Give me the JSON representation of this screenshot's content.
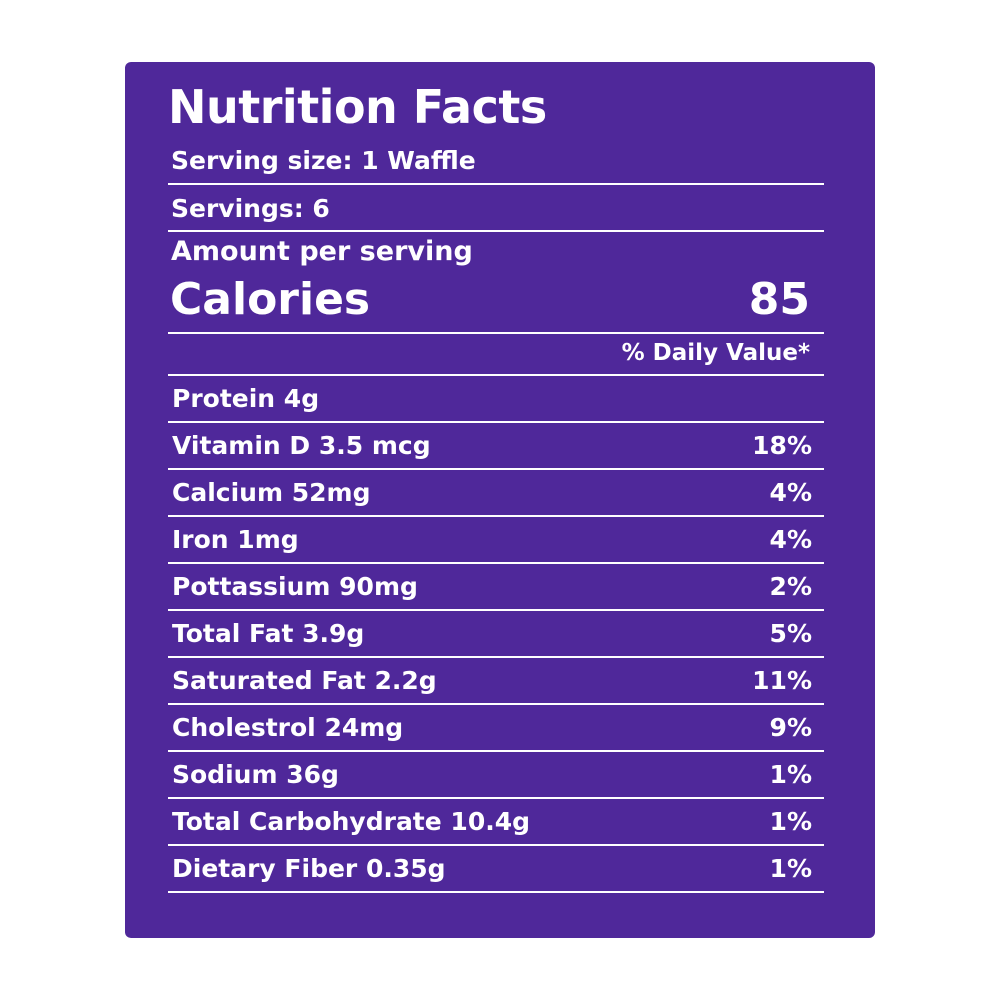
{
  "colors": {
    "panel": "#4f289a",
    "text": "#ffffff",
    "background": "#ffffff"
  },
  "label": {
    "title": "Nutrition Facts",
    "serving_size": "Serving size: 1 Waffle",
    "servings": "Servings: 6",
    "amount_per_serving": "Amount per serving",
    "calories_label": "Calories",
    "calories_value": "85",
    "daily_value_header": "% Daily Value*"
  },
  "nutrients": [
    {
      "name": "Protein 4g",
      "dv": ""
    },
    {
      "name": "Vitamin D 3.5 mcg",
      "dv": "18%"
    },
    {
      "name": "Calcium 52mg",
      "dv": "4%"
    },
    {
      "name": "Iron 1mg",
      "dv": "4%"
    },
    {
      "name": "Pottassium 90mg",
      "dv": "2%"
    },
    {
      "name": "Total Fat 3.9g",
      "dv": "5%"
    },
    {
      "name": "Saturated Fat 2.2g",
      "dv": "11%"
    },
    {
      "name": "Cholestrol 24mg",
      "dv": "9%"
    },
    {
      "name": "Sodium 36g",
      "dv": "1%"
    },
    {
      "name": "Total Carbohydrate 10.4g",
      "dv": "1%"
    },
    {
      "name": "Dietary Fiber 0.35g",
      "dv": "1%"
    }
  ]
}
